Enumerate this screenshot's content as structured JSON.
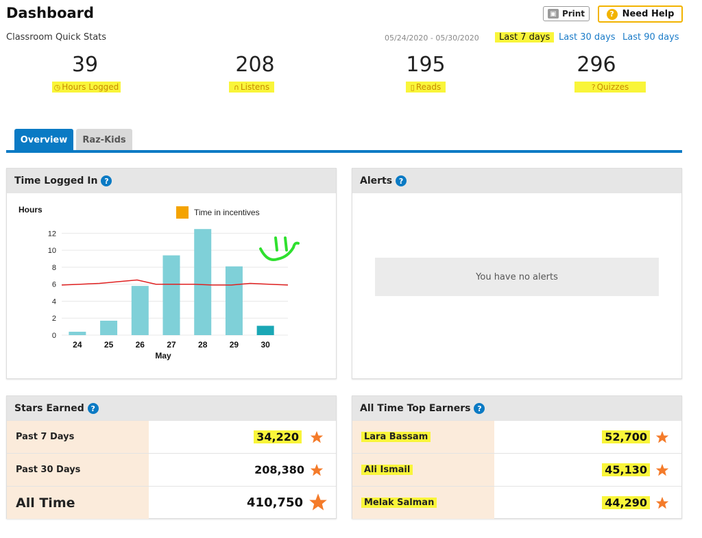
{
  "header": {
    "title": "Dashboard",
    "subtitle": "Classroom Quick Stats",
    "print_label": "Print",
    "help_label": "Need Help",
    "date_range": "05/24/2020 - 05/30/2020",
    "range_options": [
      "Last 7 days",
      "Last 30 days",
      "Last 90 days"
    ],
    "selected_range": "Last 7 days"
  },
  "stats": [
    {
      "value": "39",
      "label": "Hours Logged",
      "icon": "clock-icon"
    },
    {
      "value": "208",
      "label": "Listens",
      "icon": "headphones-icon"
    },
    {
      "value": "195",
      "label": "Reads",
      "icon": "book-icon"
    },
    {
      "value": "296",
      "label": "Quizzes",
      "icon": "question-icon"
    }
  ],
  "tabs": [
    {
      "label": "Overview",
      "active": true
    },
    {
      "label": "Raz-Kids",
      "active": false
    }
  ],
  "time_panel": {
    "title": "Time Logged In"
  },
  "chart_data": {
    "type": "bar",
    "ylabel": "Hours",
    "xlabel": "May",
    "categories": [
      "24",
      "25",
      "26",
      "27",
      "28",
      "29",
      "30"
    ],
    "series": [
      {
        "name": "Hours",
        "values": [
          0.4,
          1.7,
          5.8,
          9.4,
          12.5,
          8.1,
          1.1
        ]
      }
    ],
    "average_line": [
      5.9,
      6.0,
      6.1,
      6.3,
      6.5,
      6.0,
      6.0,
      6.0,
      5.9,
      5.9,
      6.1,
      6.0,
      5.9
    ],
    "legend": [
      "Time in incentives"
    ],
    "legend_placement": "top",
    "ylim": [
      0,
      13
    ],
    "yticks": [
      0,
      2,
      4,
      6,
      8,
      10,
      12
    ],
    "colors": {
      "bar": "#7fd0d8",
      "bar_current": "#1aa7b5",
      "line": "#e02020",
      "legend_box": "#f4a300"
    }
  },
  "alerts_panel": {
    "title": "Alerts",
    "empty_message": "You have no alerts"
  },
  "stars_panel": {
    "title": "Stars Earned",
    "rows": [
      {
        "label": "Past 7 Days",
        "value": "34,220"
      },
      {
        "label": "Past 30 Days",
        "value": "208,380"
      },
      {
        "label": "All Time",
        "value": "410,750"
      }
    ]
  },
  "top_earners_panel": {
    "title": "All Time Top Earners",
    "rows": [
      {
        "name": "Lara Bassam",
        "value": "52,700"
      },
      {
        "name": "Ali Ismail",
        "value": "45,130"
      },
      {
        "name": "Melak Salman",
        "value": "44,290"
      }
    ]
  },
  "colors": {
    "accent": "#0a7ac4",
    "help_border": "#f2b300",
    "star": "#f47b2a",
    "highlight": "#f9f53a"
  }
}
